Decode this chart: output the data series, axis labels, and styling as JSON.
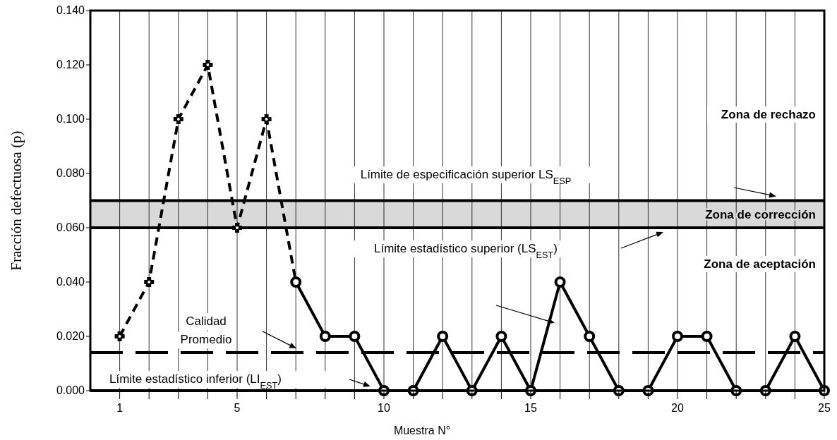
{
  "chart_data": {
    "type": "line",
    "xlabel": "Muestra N°",
    "ylabel": "Fracción defectuosa (p)",
    "xlim": [
      0,
      25
    ],
    "ylim": [
      0,
      0.14
    ],
    "xticks": [
      1,
      {
        "value": 2,
        "label": null
      },
      {
        "value": 3,
        "label": null
      },
      {
        "value": 4,
        "label": null
      },
      5,
      {
        "value": 6,
        "label": null
      },
      {
        "value": 7,
        "label": null
      },
      {
        "value": 8,
        "label": null
      },
      {
        "value": 9,
        "label": null
      },
      10,
      {
        "value": 11,
        "label": null
      },
      {
        "value": 12,
        "label": null
      },
      {
        "value": 13,
        "label": null
      },
      {
        "value": 14,
        "label": null
      },
      15,
      {
        "value": 16,
        "label": null
      },
      {
        "value": 17,
        "label": null
      },
      {
        "value": 18,
        "label": null
      },
      {
        "value": 19,
        "label": null
      },
      20,
      {
        "value": 21,
        "label": null
      },
      {
        "value": 22,
        "label": null
      },
      {
        "value": 23,
        "label": null
      },
      {
        "value": 24,
        "label": null
      },
      25
    ],
    "yticks": [
      {
        "value": 0,
        "label": "0.000"
      },
      {
        "value": 0.02,
        "label": "0.020"
      },
      {
        "value": 0.04,
        "label": "0.040"
      },
      {
        "value": 0.06,
        "label": "0.060"
      },
      {
        "value": 0.08,
        "label": "0.080"
      },
      {
        "value": 0.1,
        "label": "0.100"
      },
      {
        "value": 0.12,
        "label": "0.120"
      },
      {
        "value": 0.14,
        "label": "0.140"
      }
    ],
    "grid": "x",
    "series": [
      {
        "color": "#000000",
        "marker": "cross",
        "line_style": "dashed",
        "x": [
          1,
          2,
          3,
          4,
          5,
          6,
          7
        ],
        "values": [
          0.02,
          0.04,
          0.1,
          0.12,
          0.06,
          0.1,
          0.04
        ]
      },
      {
        "color": "#000000",
        "marker": "circle",
        "line_style": "solid",
        "x": [
          7,
          8,
          9,
          10,
          11,
          12,
          13,
          14,
          15,
          16,
          17,
          18,
          19,
          20,
          21,
          22,
          23,
          24,
          25
        ],
        "values": [
          0.04,
          0.02,
          0.02,
          0,
          0,
          0.02,
          0,
          0.02,
          0,
          0.04,
          0.02,
          0,
          0,
          0.02,
          0.02,
          0,
          0,
          0.02,
          0
        ]
      }
    ],
    "ref_lines": [
      {
        "axis": "y",
        "value": 0.07,
        "label": "Límite de especificación superior LS$_{ESP}$",
        "color": "#000000",
        "line_style": "solid"
      },
      {
        "axis": "y",
        "value": 0.06,
        "label": "Límite estadístico superior (LS$_{EST}$)",
        "color": "#000000",
        "line_style": "solid"
      },
      {
        "axis": "y",
        "value": 0.014,
        "label": "Calidad Promedio",
        "color": "#000000",
        "line_style": "dashed"
      },
      {
        "axis": "y",
        "value": 0,
        "label": "Límite estadístico inferior (LI$_{EST}$)",
        "color": "#000000",
        "line_style": "solid"
      }
    ],
    "bands": [
      {
        "axis": "y",
        "from": 0.06,
        "to": 0.07,
        "label": "Zona de corrección",
        "color": "#d9d9d9"
      }
    ],
    "annotations": [
      "Zona de rechazo",
      "Zona de aceptación"
    ]
  }
}
